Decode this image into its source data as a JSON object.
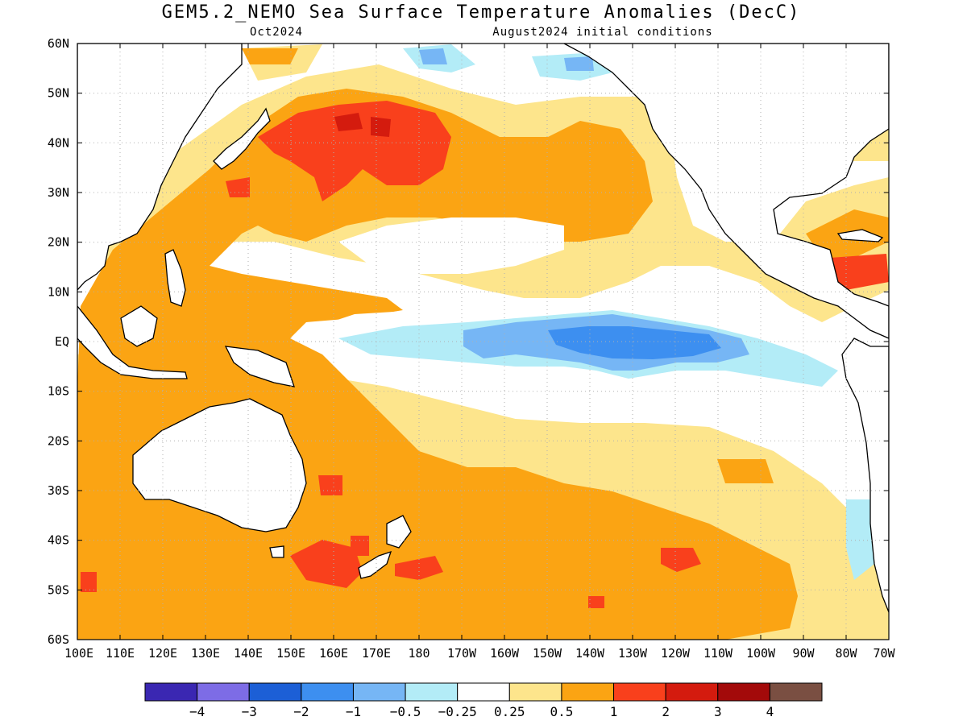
{
  "title": "GEM5.2_NEMO Sea Surface Temperature Anomalies (DecC)",
  "subtitle_left": "Oct2024",
  "subtitle_right": "August2024 initial conditions",
  "lat_ticks": [
    "60N",
    "50N",
    "40N",
    "30N",
    "20N",
    "10N",
    "EQ",
    "10S",
    "20S",
    "30S",
    "40S",
    "50S",
    "60S"
  ],
  "lon_ticks": [
    "100E",
    "110E",
    "120E",
    "130E",
    "140E",
    "150E",
    "160E",
    "170E",
    "180",
    "170W",
    "160W",
    "150W",
    "140W",
    "130W",
    "120W",
    "110W",
    "100W",
    "90W",
    "80W",
    "70W"
  ],
  "colorbar": {
    "colors": [
      "#3a27b2",
      "#7d6ce6",
      "#1c5fd6",
      "#3d8ff0",
      "#76b6f5",
      "#b3ecf7",
      "#ffffff",
      "#fde58c",
      "#fba413",
      "#f9401c",
      "#d41b0e",
      "#a30a0a",
      "#7a4f42"
    ],
    "labels": [
      "−4",
      "−3",
      "−2",
      "−1",
      "−0.5",
      "−0.25",
      "0.25",
      "0.5",
      "1",
      "2",
      "3",
      "4"
    ]
  },
  "map_colors": {
    "land": "#ffffff",
    "coast": "#000000",
    "grid": "#b0b0b0",
    "light_orange": "#fde58c",
    "orange": "#fba413",
    "red": "#f9401c",
    "dark_red": "#d41b0e",
    "light_blue": "#b3ecf7",
    "blue": "#76b6f5",
    "mid_blue": "#3d8ff0"
  }
}
